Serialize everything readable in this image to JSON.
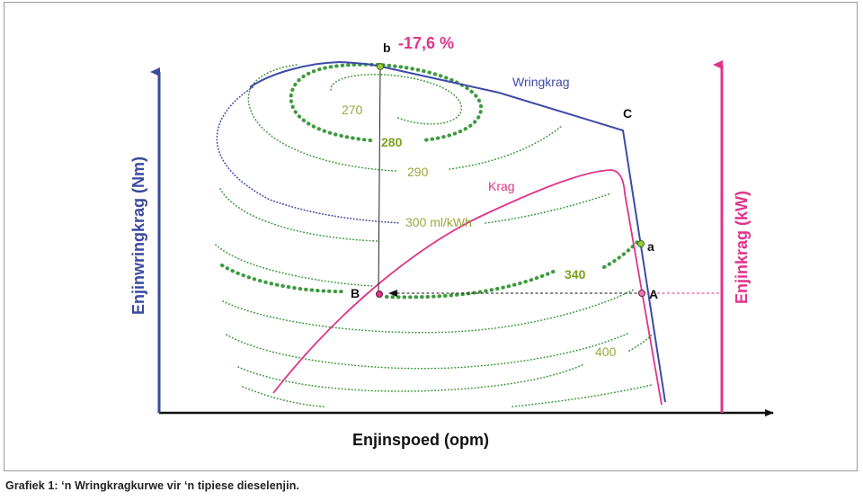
{
  "chart_data": {
    "type": "diagram",
    "x_axis_label": "Enjinspoed (opm)",
    "y_axis_left_label": "Enjinwringkrag (Nm)",
    "y_axis_right_label": "Enjinkrag (kW)",
    "curves": {
      "torque": "Wringkrag",
      "power": "Krag"
    },
    "contours": [
      {
        "label": "270",
        "unit": ""
      },
      {
        "label": "280",
        "unit": ""
      },
      {
        "label": "290",
        "unit": ""
      },
      {
        "label": "300 ml/kWh",
        "unit": "ml/kWh"
      },
      {
        "label": "340",
        "unit": ""
      },
      {
        "label": "400",
        "unit": ""
      }
    ],
    "points": [
      {
        "name": "A"
      },
      {
        "name": "B"
      },
      {
        "name": "C"
      },
      {
        "name": "a"
      },
      {
        "name": "b"
      }
    ],
    "annotation": "-17,6 %",
    "colors": {
      "torque_axis": "#3a4aa0",
      "power_axis": "#e0338a",
      "torque_curve": "#3d4aa8",
      "power_curve": "#e0338a",
      "contour": "#3d9a3d",
      "contour_label": "#9aa83a",
      "annotation": "#e0338a"
    }
  },
  "caption": "Grafiek 1: ‘n Wringkragkurwe vir ‘n tipiese dieselenjin."
}
